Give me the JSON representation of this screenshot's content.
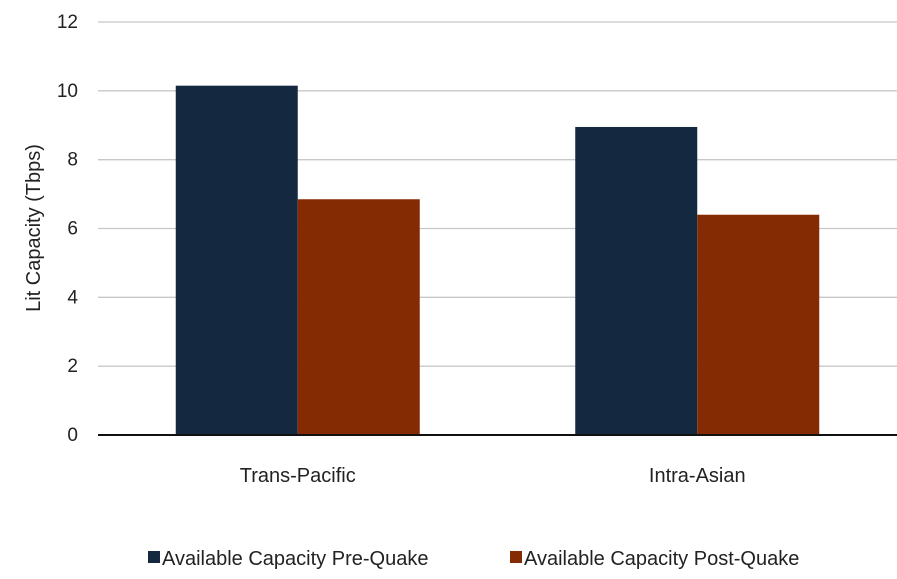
{
  "chart_data": {
    "type": "bar",
    "title": "",
    "xlabel": "",
    "ylabel": "Lit Capacity (Tbps)",
    "ylim": [
      0,
      12
    ],
    "yticks": [
      0,
      2,
      4,
      6,
      8,
      10,
      12
    ],
    "grid": true,
    "legend_position": "bottom",
    "categories": [
      "Trans-Pacific",
      "Intra-Asian"
    ],
    "series": [
      {
        "name": "Available Capacity Pre-Quake",
        "color": "#142840",
        "values": [
          10.15,
          8.95
        ]
      },
      {
        "name": "Available Capacity Post-Quake",
        "color": "#842b04",
        "values": [
          6.85,
          6.4
        ]
      }
    ]
  }
}
